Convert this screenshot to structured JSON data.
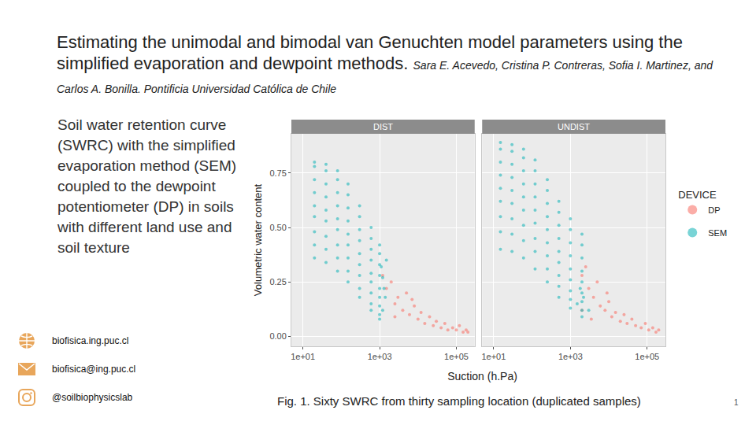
{
  "slide": {
    "title": "Estimating the unimodal and bimodal van Genuchten model parameters using the simplified evaporation and dewpoint methods.",
    "authors": "Sara E. Acevedo, Cristina P. Contreras, Sofia I. Martinez, and Carlos A. Bonilla. Pontificia Universidad Católica de Chile",
    "description": "Soil water retention curve (SWRC) with the simplified evaporation method (SEM) coupled to the dewpoint potentiometer (DP) in soils with different land use and soil texture",
    "contacts": [
      "biofisica.ing.puc.cl",
      "biofisica@ing.puc.cl",
      "@soilbiophysicslab"
    ],
    "caption": "Fig. 1. Sixty SWRC from thirty sampling location (duplicated samples)",
    "page": 1
  },
  "chart_data": {
    "type": "scatter",
    "x_label": "Suction (h.Pa)",
    "y_label": "Volumetric water content",
    "log": "x",
    "grid": true,
    "legend": "right",
    "legend_title": "DEVICE",
    "marker": "circle",
    "xlim": [
      5,
      300000
    ],
    "xticks": [
      {
        "value": 10,
        "label": "1e+01"
      },
      {
        "value": 1000,
        "label": "1e+03"
      },
      {
        "value": 100000,
        "label": "1e+05"
      }
    ],
    "ylim": [
      -0.045,
      0.93
    ],
    "yticks": [
      {
        "value": 0,
        "label": "0.00"
      },
      {
        "value": 0.25,
        "label": "0.25"
      },
      {
        "value": 0.5,
        "label": "0.50"
      },
      {
        "value": 0.75,
        "label": "0.75"
      }
    ],
    "panels": [
      {
        "title": "DIST",
        "series": [
          {
            "name": "DP",
            "color": "#F8766D",
            "x": [
              1500,
              2000,
              3000,
              2500,
              4000,
              5000,
              6000,
              8000,
              10000,
              12000,
              15000,
              20000,
              25000,
              30000,
              40000,
              50000,
              60000,
              80000,
              100000,
              120000,
              150000,
              180000,
              200000,
              2500,
              7000,
              1200
            ],
            "values": [
              0.22,
              0.25,
              0.18,
              0.15,
              0.12,
              0.2,
              0.1,
              0.14,
              0.08,
              0.11,
              0.06,
              0.09,
              0.05,
              0.07,
              0.04,
              0.06,
              0.03,
              0.04,
              0.03,
              0.05,
              0.02,
              0.03,
              0.02,
              0.09,
              0.17,
              0.28
            ]
          },
          {
            "name": "SEM",
            "color": "#1FB8BB",
            "x": [
              20,
              40,
              80,
              150,
              300,
              600,
              1000,
              20,
              40,
              80,
              150,
              300,
              600,
              1000,
              20,
              40,
              80,
              150,
              300,
              600,
              1000,
              20,
              40,
              80,
              150,
              300,
              600,
              1000,
              20,
              40,
              80,
              150,
              300,
              600,
              1000,
              20,
              40,
              80,
              150,
              300,
              600,
              1000,
              20,
              40,
              80,
              150,
              300,
              600,
              1000,
              20,
              40,
              80,
              150,
              300,
              600,
              1000,
              20,
              40,
              80,
              150,
              300,
              600,
              1000,
              1100,
              1200,
              1300,
              1500,
              1400,
              1200
            ],
            "values": [
              0.8,
              0.79,
              0.76,
              0.7,
              0.6,
              0.5,
              0.42,
              0.78,
              0.76,
              0.72,
              0.65,
              0.55,
              0.45,
              0.38,
              0.72,
              0.7,
              0.66,
              0.59,
              0.49,
              0.4,
              0.33,
              0.66,
              0.64,
              0.6,
              0.53,
              0.44,
              0.35,
              0.28,
              0.6,
              0.58,
              0.54,
              0.47,
              0.38,
              0.29,
              0.22,
              0.55,
              0.53,
              0.49,
              0.42,
              0.33,
              0.25,
              0.18,
              0.48,
              0.46,
              0.42,
              0.36,
              0.28,
              0.2,
              0.14,
              0.42,
              0.4,
              0.36,
              0.3,
              0.22,
              0.15,
              0.1,
              0.36,
              0.34,
              0.3,
              0.25,
              0.18,
              0.12,
              0.08,
              0.32,
              0.27,
              0.22,
              0.35,
              0.18,
              0.12
            ]
          }
        ]
      },
      {
        "title": "UNDIST",
        "series": [
          {
            "name": "DP",
            "color": "#F8766D",
            "x": [
              2000,
              2500,
              3000,
              4000,
              5000,
              6000,
              8000,
              10000,
              12000,
              15000,
              20000,
              25000,
              30000,
              40000,
              50000,
              70000,
              90000,
              110000,
              140000,
              170000,
              200000,
              3500,
              2000,
              9000
            ],
            "values": [
              0.28,
              0.32,
              0.22,
              0.18,
              0.25,
              0.14,
              0.12,
              0.16,
              0.09,
              0.11,
              0.07,
              0.1,
              0.06,
              0.08,
              0.05,
              0.04,
              0.06,
              0.03,
              0.04,
              0.02,
              0.03,
              0.08,
              0.12,
              0.2
            ]
          },
          {
            "name": "SEM",
            "color": "#1FB8BB",
            "x": [
              15,
              30,
              60,
              120,
              250,
              500,
              1000,
              2000,
              15,
              30,
              60,
              120,
              250,
              500,
              1000,
              2000,
              15,
              30,
              60,
              120,
              250,
              500,
              1000,
              2000,
              15,
              30,
              60,
              120,
              250,
              500,
              1000,
              2000,
              15,
              30,
              60,
              120,
              250,
              500,
              1000,
              2000,
              15,
              30,
              60,
              120,
              250,
              500,
              1000,
              2000,
              15,
              30,
              60,
              120,
              250,
              500,
              1000,
              2000,
              15,
              30,
              60,
              120,
              250,
              500,
              1000,
              2000,
              15,
              30,
              60,
              120,
              250,
              500,
              1000,
              2000,
              1500,
              1800,
              2200,
              3000
            ],
            "values": [
              0.89,
              0.88,
              0.86,
              0.81,
              0.72,
              0.62,
              0.54,
              0.47,
              0.86,
              0.85,
              0.82,
              0.76,
              0.67,
              0.57,
              0.49,
              0.42,
              0.8,
              0.79,
              0.76,
              0.7,
              0.61,
              0.51,
              0.43,
              0.36,
              0.74,
              0.73,
              0.7,
              0.64,
              0.55,
              0.45,
              0.37,
              0.3,
              0.68,
              0.67,
              0.64,
              0.58,
              0.49,
              0.39,
              0.31,
              0.25,
              0.62,
              0.61,
              0.58,
              0.52,
              0.43,
              0.34,
              0.26,
              0.2,
              0.55,
              0.54,
              0.51,
              0.45,
              0.37,
              0.28,
              0.21,
              0.16,
              0.48,
              0.47,
              0.44,
              0.39,
              0.31,
              0.23,
              0.17,
              0.12,
              0.4,
              0.39,
              0.36,
              0.31,
              0.25,
              0.18,
              0.13,
              0.09,
              0.15,
              0.22,
              0.18,
              0.12
            ]
          }
        ]
      }
    ]
  }
}
